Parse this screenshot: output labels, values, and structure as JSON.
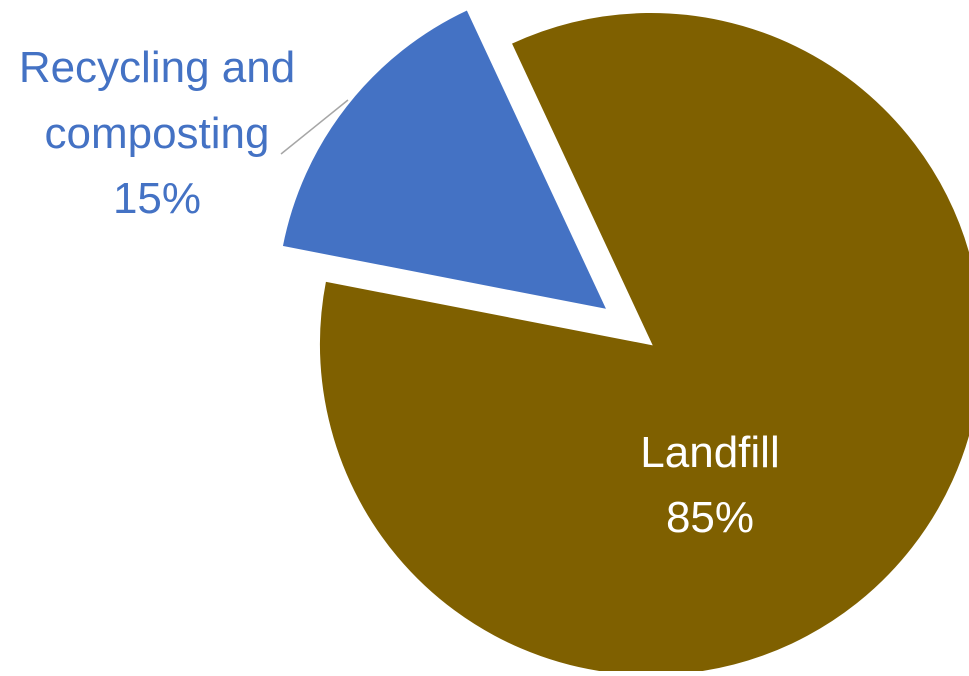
{
  "chart_data": {
    "type": "pie",
    "title": "",
    "slices": [
      {
        "label": "Landfill",
        "value": 85,
        "percent_label": "85%",
        "color": "#7f6000",
        "label_color": "#ffffff",
        "exploded": false
      },
      {
        "label": "Recycling and composting",
        "label_lines": [
          "Recycling and",
          "composting"
        ],
        "value": 15,
        "percent_label": "15%",
        "color": "#4472c4",
        "label_color": "#4472c4",
        "exploded": true
      }
    ],
    "start_angle_deg": -25,
    "direction": "clockwise",
    "legend": "none"
  }
}
